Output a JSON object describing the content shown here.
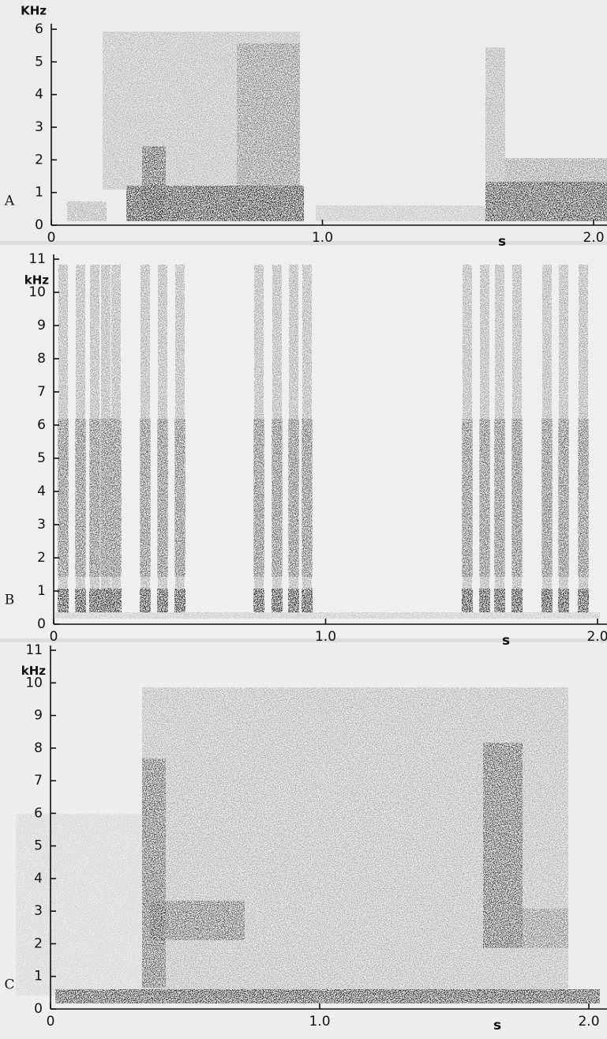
{
  "chart_data": [
    {
      "type": "spectrogram",
      "panel_label": "A",
      "ylabel": "KHz",
      "xlabel": "s",
      "xlim": [
        0,
        2
      ],
      "ylim": [
        0,
        6
      ],
      "xticks": [
        0,
        {
          "value": 1,
          "label": "1.0"
        },
        {
          "value": 2,
          "label": "2.0"
        }
      ],
      "yticks": [
        0,
        1,
        2,
        3,
        4,
        5,
        6
      ]
    },
    {
      "type": "spectrogram",
      "panel_label": "B",
      "ylabel": "kHz",
      "xlabel": "s",
      "xlim": [
        0,
        2
      ],
      "ylim": [
        0,
        11
      ],
      "xticks": [
        0,
        {
          "value": 1,
          "label": "1.0"
        },
        {
          "value": 2,
          "label": "2.0"
        }
      ],
      "yticks": [
        0,
        1,
        2,
        3,
        4,
        5,
        6,
        7,
        8,
        9,
        10,
        11
      ]
    },
    {
      "type": "spectrogram",
      "panel_label": "C",
      "ylabel": "kHz",
      "xlabel": "s",
      "xlim": [
        0,
        2
      ],
      "ylim": [
        0,
        11
      ],
      "xticks": [
        0,
        {
          "value": 1,
          "label": "1.0"
        },
        {
          "value": 2,
          "label": "2.0"
        }
      ],
      "yticks": [
        0,
        1,
        2,
        3,
        4,
        5,
        6,
        7,
        8,
        9,
        10,
        11
      ]
    }
  ]
}
